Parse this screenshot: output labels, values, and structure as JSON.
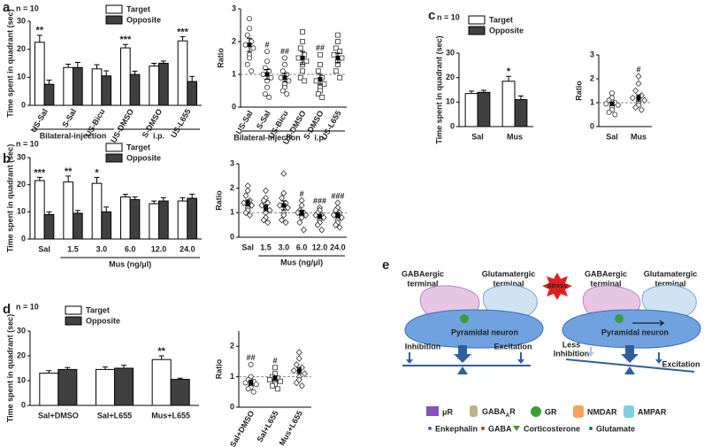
{
  "chart_data": [
    {
      "type": "bar",
      "panel": "a",
      "note": "n = 10",
      "ylabel": "Time spent in quadrant (sec)",
      "categories": [
        "US-Sal",
        "S-Sal",
        "US-Bicu",
        "US-DMSO",
        "S-DMSO",
        "US-L655"
      ],
      "series": [
        {
          "name": "Target",
          "color": "#ffffff",
          "values": [
            22.5,
            13.5,
            13,
            20.5,
            14,
            23
          ],
          "errors": [
            2.5,
            1.2,
            1.5,
            1.2,
            1,
            1.5
          ]
        },
        {
          "name": "Opposite",
          "color": "#404040",
          "values": [
            7.5,
            13.5,
            10.5,
            11,
            15,
            8.5
          ],
          "errors": [
            1.5,
            1.8,
            1.8,
            1.2,
            0.8,
            1.8
          ]
        }
      ],
      "annotations": [
        "**",
        null,
        null,
        "***",
        null,
        "***"
      ],
      "groups": [
        "Bilateral-injection",
        "i.p."
      ],
      "ylim": [
        0,
        30
      ],
      "yticks": [
        0,
        10,
        20,
        30
      ]
    },
    {
      "type": "scatter",
      "ylabel": "Ratio",
      "categories": [
        "US-Sal",
        "S-Sal",
        "US-Bicu",
        "US-DMSO",
        "S-DMSO",
        "US-L655"
      ],
      "markers": [
        "circle",
        "circle",
        "circle",
        "square",
        "square",
        "square"
      ],
      "points": [
        [
          2.7,
          2.4,
          2.2,
          2.0,
          1.9,
          1.8,
          1.6,
          1.5,
          1.3,
          1.1
        ],
        [
          1.7,
          1.4,
          1.2,
          1.1,
          1.0,
          0.9,
          0.8,
          0.6,
          0.4,
          0.3
        ],
        [
          1.5,
          1.3,
          1.1,
          1.0,
          0.9,
          0.8,
          0.7,
          0.6,
          0.5,
          0.4
        ],
        [
          2.3,
          2.0,
          1.8,
          1.6,
          1.5,
          1.4,
          1.3,
          1.1,
          0.9,
          0.8
        ],
        [
          1.6,
          1.3,
          1.1,
          0.9,
          0.8,
          0.7,
          0.6,
          0.5,
          0.4,
          0.3
        ],
        [
          2.2,
          2.0,
          1.8,
          1.7,
          1.6,
          1.5,
          1.4,
          1.3,
          1.1,
          0.9
        ]
      ],
      "means": [
        1.9,
        1.0,
        0.9,
        1.5,
        0.85,
        1.5
      ],
      "mean_errors": [
        0.2,
        0.15,
        0.12,
        0.2,
        0.15,
        0.15
      ],
      "annotations": [
        null,
        "#",
        "##",
        null,
        "##",
        null
      ],
      "reference_line": 1,
      "groups": [
        "Bilateral-injection",
        "i.p."
      ],
      "ylim": [
        0,
        3
      ],
      "yticks": [
        0,
        1,
        2,
        3
      ]
    },
    {
      "type": "bar",
      "panel": "b",
      "note": "n = 10",
      "ylabel": "Time spent in quadrant (sec)",
      "xlabel": "Mus (ng/μl)",
      "categories": [
        "Sal",
        "1.5",
        "3.0",
        "6.0",
        "12.0",
        "24.0"
      ],
      "series": [
        {
          "name": "Target",
          "color": "#ffffff",
          "values": [
            21.5,
            21,
            20.5,
            15.5,
            13,
            14
          ],
          "errors": [
            1.2,
            2.2,
            2.2,
            1,
            1,
            1.2
          ]
        },
        {
          "name": "Opposite",
          "color": "#404040",
          "values": [
            9,
            9.5,
            10,
            14.5,
            14,
            15
          ],
          "errors": [
            1,
            1,
            1.8,
            1,
            1.2,
            1.5
          ]
        }
      ],
      "annotations": [
        "***",
        "**",
        "*",
        null,
        null,
        null
      ],
      "ylim": [
        0,
        30
      ],
      "yticks": [
        0,
        10,
        20,
        30
      ]
    },
    {
      "type": "scatter",
      "ylabel": "Ratio",
      "xlabel": "Mus (ng/μl)",
      "categories": [
        "Sal",
        "1.5",
        "3.0",
        "6.0",
        "12.0",
        "24.0"
      ],
      "markers": [
        "diamond",
        "diamond",
        "diamond",
        "diamond",
        "diamond",
        "diamond"
      ],
      "points": [
        [
          2.1,
          1.9,
          1.7,
          1.5,
          1.4,
          1.3,
          1.2,
          1.1,
          1.0,
          0.9
        ],
        [
          1.9,
          1.6,
          1.5,
          1.4,
          1.3,
          1.1,
          1.0,
          0.8,
          0.7,
          0.6
        ],
        [
          2.6,
          1.8,
          1.6,
          1.4,
          1.3,
          1.2,
          1.0,
          0.9,
          0.7,
          0.6
        ],
        [
          1.5,
          1.3,
          1.1,
          1.0,
          1.0,
          0.9,
          0.9,
          0.8,
          0.6,
          0.3
        ],
        [
          1.2,
          1.1,
          1.0,
          0.9,
          0.9,
          0.8,
          0.7,
          0.6,
          0.5,
          0.3
        ],
        [
          1.4,
          1.2,
          1.1,
          1.0,
          0.9,
          0.8,
          0.7,
          0.6,
          0.5,
          0.4
        ]
      ],
      "means": [
        1.4,
        1.2,
        1.3,
        1.0,
        0.85,
        0.9
      ],
      "mean_errors": [
        0.12,
        0.12,
        0.18,
        0.1,
        0.08,
        0.1
      ],
      "annotations": [
        null,
        null,
        null,
        "#",
        "###",
        "###"
      ],
      "reference_line": 1,
      "ylim": [
        0,
        3
      ],
      "yticks": [
        0,
        1,
        2,
        3
      ]
    },
    {
      "type": "bar",
      "panel": "c",
      "note": "n = 10",
      "ylabel": "Time spent in quadrant (sec)",
      "categories": [
        "Sal",
        "Mus"
      ],
      "series": [
        {
          "name": "Target",
          "color": "#ffffff",
          "values": [
            13.5,
            18.5
          ],
          "errors": [
            1,
            2
          ]
        },
        {
          "name": "Opposite",
          "color": "#404040",
          "values": [
            14,
            11
          ],
          "errors": [
            0.8,
            1.5
          ]
        }
      ],
      "annotations": [
        null,
        "*"
      ],
      "ylim": [
        0,
        30
      ],
      "yticks": [
        0,
        10,
        20,
        30
      ]
    },
    {
      "type": "scatter",
      "ylabel": "Ratio",
      "categories": [
        "Sal",
        "Mus"
      ],
      "markers": [
        "circle",
        "diamond"
      ],
      "points": [
        [
          1.4,
          1.2,
          1.1,
          1.0,
          0.95,
          0.9,
          0.8,
          0.7,
          0.6,
          0.5
        ],
        [
          2.1,
          1.8,
          1.5,
          1.3,
          1.2,
          1.1,
          1.0,
          0.9,
          0.8,
          0.7
        ]
      ],
      "means": [
        0.95,
        1.2
      ],
      "mean_errors": [
        0.08,
        0.13
      ],
      "annotations": [
        null,
        "#"
      ],
      "reference_line": 1,
      "ylim": [
        0,
        3
      ],
      "yticks": [
        0,
        1,
        2,
        3
      ]
    },
    {
      "type": "bar",
      "panel": "d",
      "note": "n = 10",
      "ylabel": "Time spent in quadrant (sec)",
      "categories": [
        "Sal+DMSO",
        "Sal+L655",
        "Mus+L655"
      ],
      "series": [
        {
          "name": "Target",
          "color": "#ffffff",
          "values": [
            13,
            14.5,
            18.5
          ],
          "errors": [
            1,
            1,
            1.5
          ]
        },
        {
          "name": "Opposite",
          "color": "#404040",
          "values": [
            14.5,
            15,
            10.5
          ],
          "errors": [
            0.8,
            1.2,
            0.5
          ]
        }
      ],
      "annotations": [
        null,
        null,
        "**"
      ],
      "ylim": [
        0,
        30
      ],
      "yticks": [
        0,
        10,
        20,
        30
      ]
    },
    {
      "type": "scatter",
      "ylabel": "Ratio",
      "categories": [
        "Sal+DMSO",
        "Sal+L655",
        "Mus+L655"
      ],
      "markers": [
        "circle",
        "square",
        "diamond"
      ],
      "points": [
        [
          1.4,
          1.0,
          0.9,
          0.85,
          0.8,
          0.75,
          0.7,
          0.65,
          0.6,
          0.5
        ],
        [
          1.3,
          1.1,
          1.0,
          0.95,
          0.9,
          0.85,
          0.8,
          0.75,
          0.7,
          0.6
        ],
        [
          1.8,
          1.6,
          1.4,
          1.3,
          1.2,
          1.1,
          1.0,
          0.9,
          0.8,
          0.7
        ]
      ],
      "means": [
        0.8,
        0.95,
        1.2
      ],
      "mean_errors": [
        0.08,
        0.07,
        0.1
      ],
      "annotations": [
        "##",
        "#",
        null
      ],
      "reference_line": 1,
      "ylim": [
        0,
        2.5
      ],
      "yticks": [
        0,
        1,
        2
      ]
    }
  ],
  "diagram": {
    "panel": "e",
    "left": {
      "gaba_terminal": [
        "GABAergic",
        "terminal"
      ],
      "glu_terminal": [
        "Glutamatergic",
        "terminal"
      ],
      "neuron": "Pyramidal neuron",
      "inhibition": "Inhibition",
      "excitation": "Excitation"
    },
    "right": {
      "stress": "Stress",
      "gaba_terminal": [
        "GABAergic",
        "terminal"
      ],
      "glu_terminal": [
        "Glutamatergic",
        "terminal"
      ],
      "neuron": "Pyramidal neuron",
      "inhibition": [
        "Less",
        "Inhibition"
      ],
      "excitation": "Excitation"
    },
    "legend": {
      "mu_r": "μR",
      "gabaa_r": [
        "GABA",
        "A",
        "R"
      ],
      "gr": "GR",
      "nmdar": "NMDAR",
      "ampar": "AMPAR",
      "enkephalin": "Enkephalin",
      "gaba": "GABA",
      "corticosterone": "Corticosterone",
      "glutamate": "Glutamate"
    }
  }
}
